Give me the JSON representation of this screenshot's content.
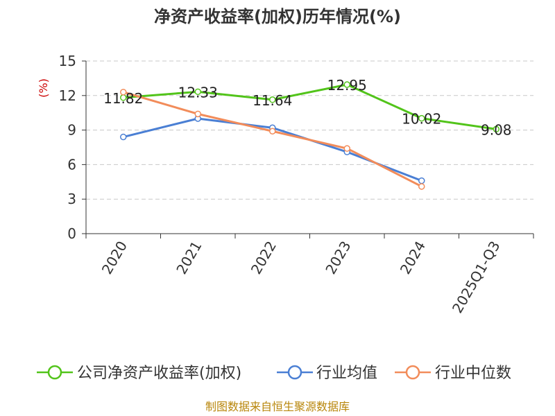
{
  "chart_data": {
    "type": "line",
    "title": "净资产收益率(加权)历年情况(%)",
    "ylabel": "(%)",
    "ylim": [
      0,
      15
    ],
    "yticks": [
      0,
      3,
      6,
      9,
      12,
      15
    ],
    "grid": true,
    "categories": [
      "2020",
      "2021",
      "2022",
      "2023",
      "2024",
      "2025Q1-Q3"
    ],
    "series": [
      {
        "name": "公司净资产收益率(加权)",
        "color": "#52c41a",
        "values": [
          11.82,
          12.33,
          11.64,
          12.95,
          10.02,
          9.08
        ],
        "labels": [
          "11.82",
          "12.33",
          "11.64",
          "12.95",
          "10.02",
          "9.08"
        ]
      },
      {
        "name": "行业均值",
        "color": "#4a7fd4",
        "values": [
          8.4,
          10.0,
          9.2,
          7.1,
          4.6,
          null
        ]
      },
      {
        "name": "行业中位数",
        "color": "#f28c5a",
        "values": [
          12.3,
          10.4,
          8.9,
          7.4,
          4.1,
          null
        ]
      }
    ],
    "legend_position": "bottom",
    "source": "制图数据来自恒生聚源数据库"
  }
}
